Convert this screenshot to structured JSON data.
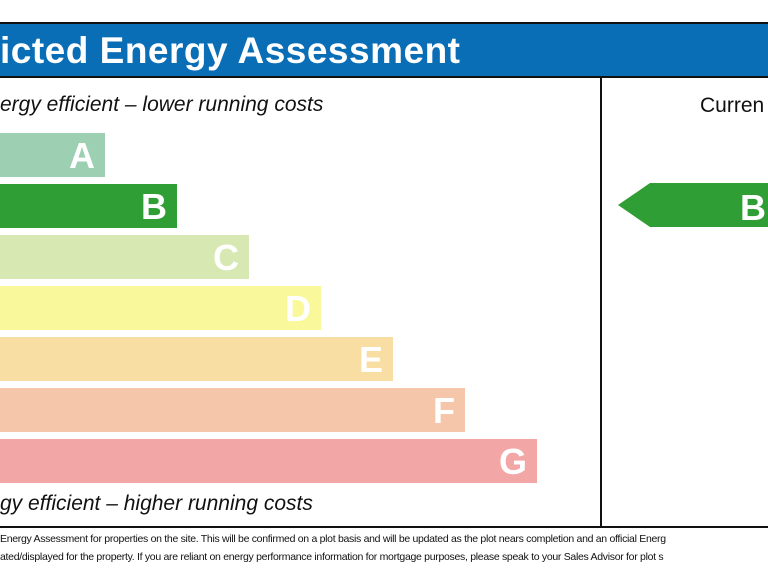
{
  "header": {
    "title": "icted Energy Assessment",
    "color": "#0a6eb7"
  },
  "captions": {
    "top": "ergy efficient – lower running costs",
    "bottom": "gy efficient – higher running costs"
  },
  "chart_data": {
    "type": "bar",
    "categories": [
      "A",
      "B",
      "C",
      "D",
      "E",
      "F",
      "G"
    ],
    "colors": [
      "#9dcfb2",
      "#2e9e35",
      "#d7e8b3",
      "#f9f99c",
      "#f9dea3",
      "#f6c6aa",
      "#f2a6a6"
    ],
    "current": {
      "label": "Curren",
      "rating": "B",
      "color": "#2e9e35"
    }
  },
  "footer": {
    "line1": "Energy Assessment for properties on the site. This will be confirmed on a plot basis and will be updated as the plot nears completion and an official Energ",
    "line2": "ated/displayed for the property. If you are reliant on energy performance information for mortgage purposes, please speak to your Sales Advisor for plot s"
  }
}
